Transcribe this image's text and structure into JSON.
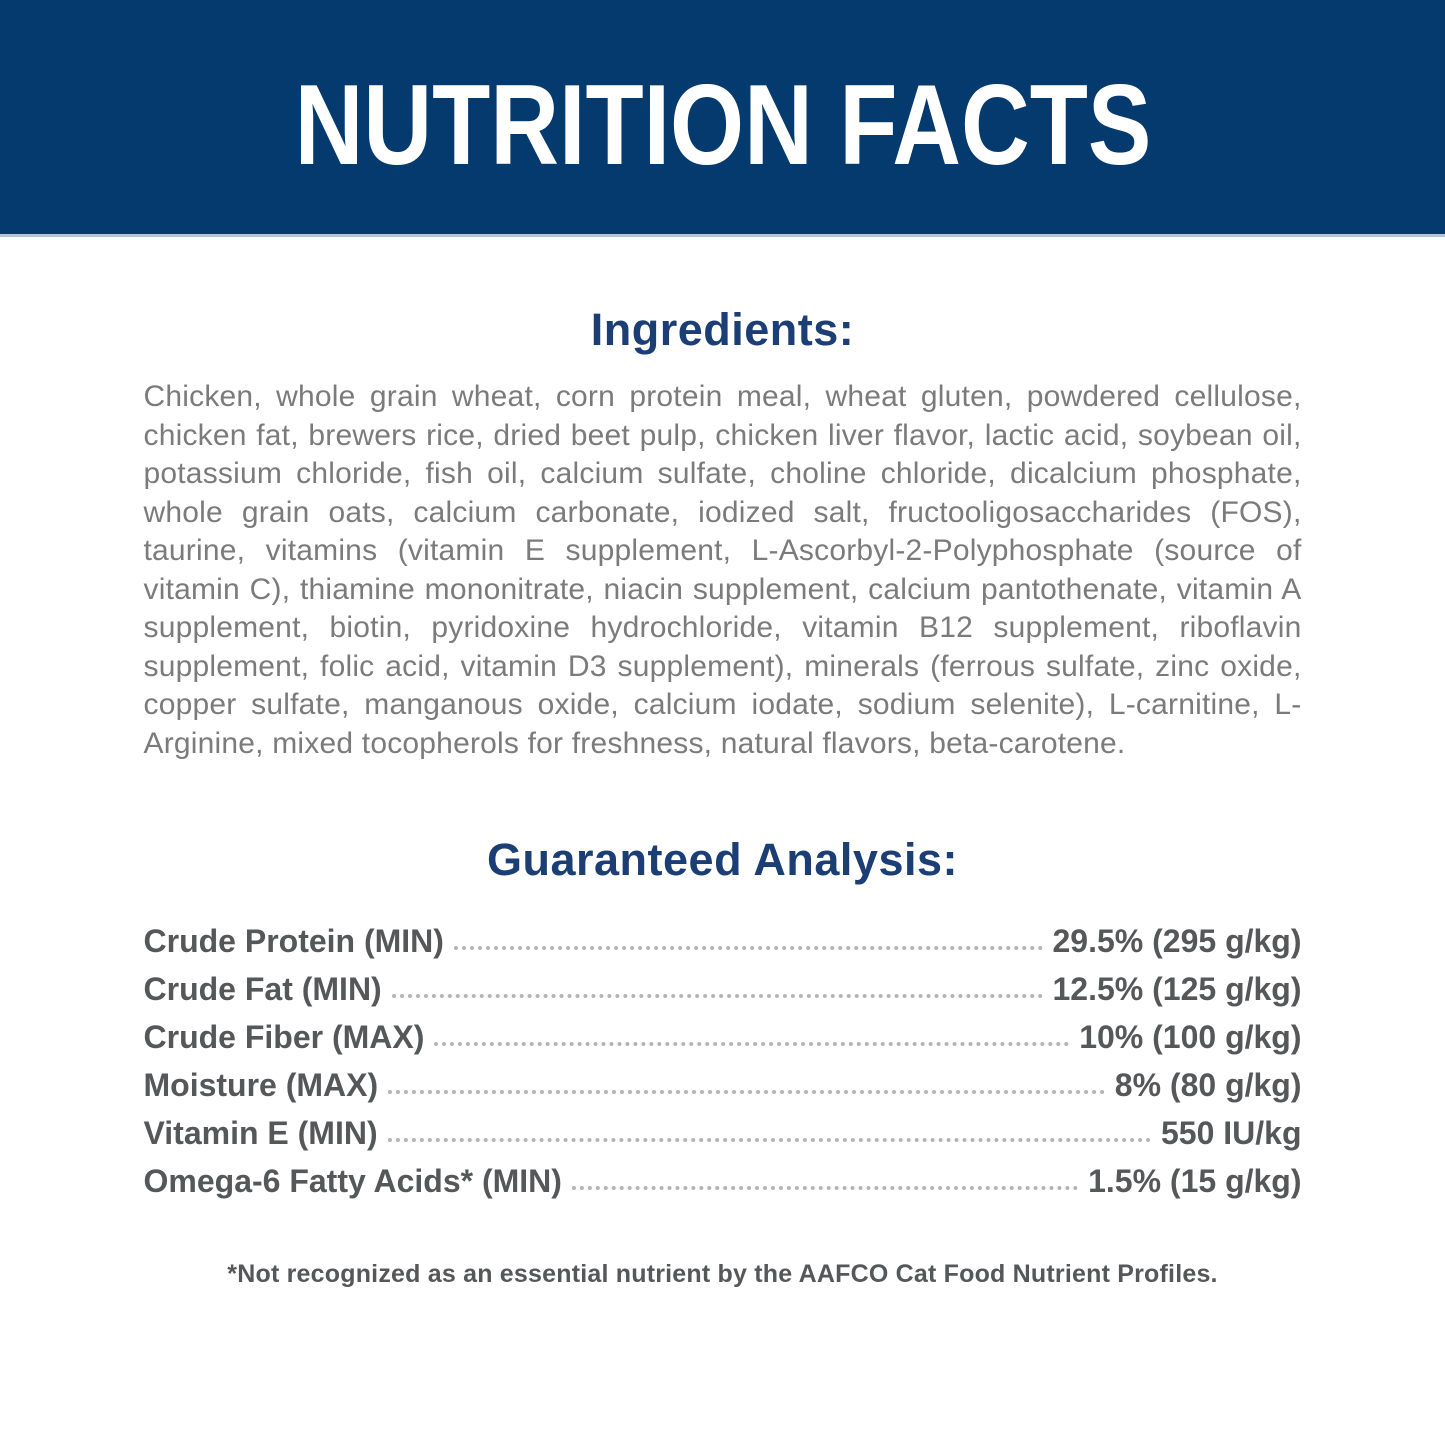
{
  "header": {
    "title": "NUTRITION FACTS"
  },
  "ingredients": {
    "heading": "Ingredients:",
    "text": "Chicken, whole grain wheat, corn protein meal, wheat gluten, powdered cellulose, chicken fat, brewers rice, dried beet pulp, chicken liver flavor, lactic acid, soybean oil, potassium chloride, fish oil, calcium sulfate, choline chloride, dicalcium phosphate, whole grain oats, calcium carbonate, iodized salt, fructooligosaccharides (FOS), taurine, vitamins (vitamin E supplement, L-Ascorbyl-2-Polyphosphate (source of vitamin C), thiamine mononitrate, niacin supplement, calcium pantothenate, vitamin A supplement, biotin, pyridoxine hydrochloride, vitamin B12 supplement, riboflavin supplement, folic acid, vitamin D3 supplement), minerals (ferrous sulfate, zinc oxide, copper sulfate, manganous oxide, calcium iodate, sodium selenite), L-carnitine, L-Arginine, mixed tocopherols for freshness, natural flavors, beta-carotene."
  },
  "guaranteed_analysis": {
    "heading": "Guaranteed Analysis:",
    "rows": [
      {
        "label": "Crude Protein (MIN)",
        "value": "29.5% (295 g/kg)"
      },
      {
        "label": "Crude Fat (MIN)",
        "value": "12.5% (125 g/kg)"
      },
      {
        "label": "Crude Fiber (MAX)",
        "value": "10% (100 g/kg)"
      },
      {
        "label": "Moisture (MAX)",
        "value": "8% (80 g/kg)"
      },
      {
        "label": "Vitamin E (MIN)",
        "value": "550 IU/kg"
      },
      {
        "label": "Omega-6 Fatty Acids* (MIN)",
        "value": "1.5% (15 g/kg)"
      }
    ],
    "footnote": "*Not recognized as an essential nutrient by the AAFCO Cat Food Nutrient Profiles."
  },
  "colors": {
    "band_navy": "#053a6e",
    "heading_navy": "#1b3e75",
    "body_gray": "#7b7b7b",
    "analysis_gray": "#565759",
    "dots_gray": "#b5b5b5",
    "separator_blue": "#b3c5da",
    "title_white": "#ffffff"
  }
}
